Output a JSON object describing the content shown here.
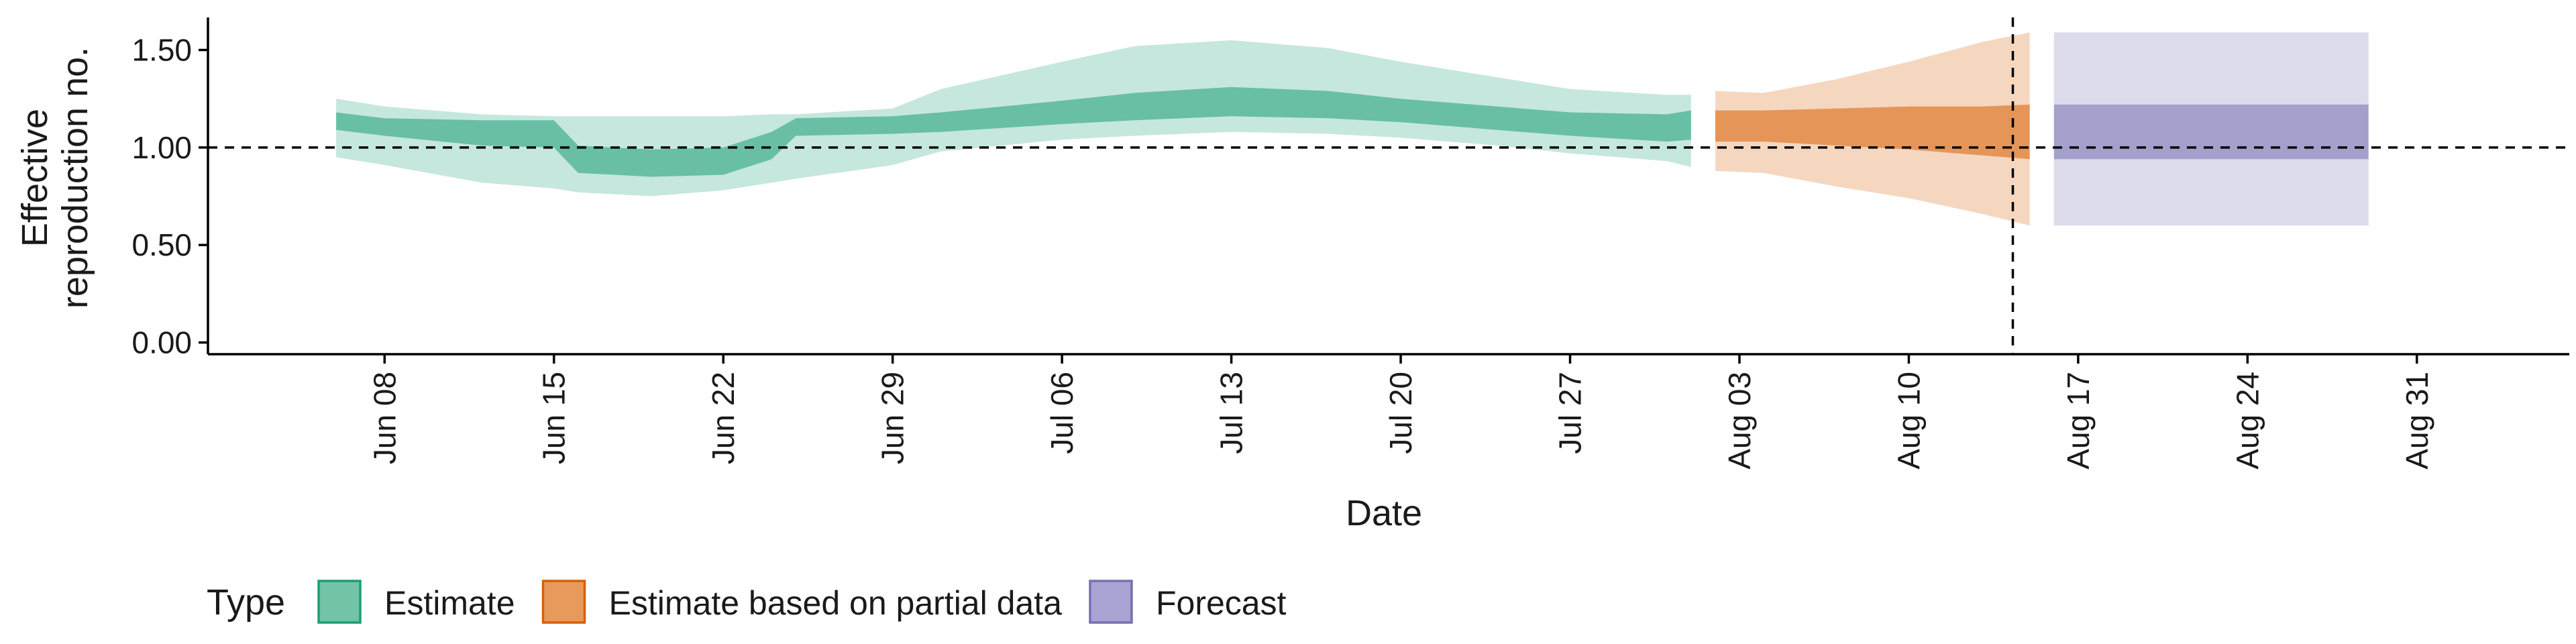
{
  "chart_data": {
    "type": "area",
    "ylabel_lines": [
      "Effective",
      "reproduction no."
    ],
    "xlabel": "Date",
    "ylim": [
      -0.06,
      1.66
    ],
    "xlim_days": [
      -5.3,
      92.3
    ],
    "start_date": "2020-06-06",
    "yticks": [
      0.0,
      0.5,
      1.0,
      1.5
    ],
    "ytick_labels": [
      "0.00",
      "0.50",
      "1.00",
      "1.50"
    ],
    "xticks": [
      "Jun 08",
      "Jun 15",
      "Jun 22",
      "Jun 29",
      "Jul 06",
      "Jul 13",
      "Jul 20",
      "Jul 27",
      "Aug 03",
      "Aug 10",
      "Aug 17",
      "Aug 24",
      "Aug 31"
    ],
    "xtick_days": [
      2,
      9,
      16,
      23,
      30,
      37,
      44,
      51,
      58,
      65,
      72,
      79,
      86
    ],
    "reference_hline_y": 1.0,
    "reference_vline_day": 69.3,
    "grid": false,
    "legend": {
      "position": "bottom-left",
      "title": "Type",
      "entries": [
        {
          "label": "Estimate",
          "fill": "#73c3a6",
          "stroke": "#1b9e77"
        },
        {
          "label": "Estimate based on partial data",
          "fill": "#e89a5c",
          "stroke": "#d95f02"
        },
        {
          "label": "Forecast",
          "fill": "#a7a3d3",
          "stroke": "#7570b3"
        }
      ]
    },
    "series": [
      {
        "name": "Estimate",
        "color": "#1b9e77",
        "points": [
          {
            "date": "2020-06-06",
            "lower90": 0.95,
            "upper90": 1.25,
            "lower50": 1.09,
            "upper50": 1.18
          },
          {
            "date": "2020-06-08",
            "lower90": 0.91,
            "upper90": 1.21,
            "lower50": 1.06,
            "upper50": 1.15
          },
          {
            "date": "2020-06-12",
            "lower90": 0.82,
            "upper90": 1.17,
            "lower50": 1.01,
            "upper50": 1.14
          },
          {
            "date": "2020-06-15",
            "lower90": 0.79,
            "upper90": 1.16,
            "lower50": 1.0,
            "upper50": 1.14
          },
          {
            "date": "2020-06-16",
            "lower90": 0.77,
            "upper90": 1.16,
            "lower50": 0.87,
            "upper50": 1.01
          },
          {
            "date": "2020-06-19",
            "lower90": 0.75,
            "upper90": 1.16,
            "lower50": 0.85,
            "upper50": 0.99
          },
          {
            "date": "2020-06-22",
            "lower90": 0.78,
            "upper90": 1.16,
            "lower50": 0.86,
            "upper50": 1.0
          },
          {
            "date": "2020-06-24",
            "lower90": 0.82,
            "upper90": 1.17,
            "lower50": 0.94,
            "upper50": 1.08
          },
          {
            "date": "2020-06-25",
            "lower90": 0.84,
            "upper90": 1.17,
            "lower50": 1.06,
            "upper50": 1.15
          },
          {
            "date": "2020-06-29",
            "lower90": 0.91,
            "upper90": 1.2,
            "lower50": 1.07,
            "upper50": 1.16
          },
          {
            "date": "2020-07-01",
            "lower90": 0.98,
            "upper90": 1.3,
            "lower50": 1.08,
            "upper50": 1.18
          },
          {
            "date": "2020-07-06",
            "lower90": 1.04,
            "upper90": 1.44,
            "lower50": 1.12,
            "upper50": 1.24
          },
          {
            "date": "2020-07-09",
            "lower90": 1.06,
            "upper90": 1.52,
            "lower50": 1.14,
            "upper50": 1.28
          },
          {
            "date": "2020-07-13",
            "lower90": 1.08,
            "upper90": 1.55,
            "lower50": 1.16,
            "upper50": 1.31
          },
          {
            "date": "2020-07-17",
            "lower90": 1.07,
            "upper90": 1.51,
            "lower50": 1.15,
            "upper50": 1.29
          },
          {
            "date": "2020-07-20",
            "lower90": 1.05,
            "upper90": 1.44,
            "lower50": 1.13,
            "upper50": 1.25
          },
          {
            "date": "2020-07-24",
            "lower90": 1.01,
            "upper90": 1.36,
            "lower50": 1.09,
            "upper50": 1.21
          },
          {
            "date": "2020-07-27",
            "lower90": 0.97,
            "upper90": 1.3,
            "lower50": 1.06,
            "upper50": 1.18
          },
          {
            "date": "2020-07-31",
            "lower90": 0.93,
            "upper90": 1.27,
            "lower50": 1.03,
            "upper50": 1.17
          },
          {
            "date": "2020-08-01",
            "lower90": 0.9,
            "upper90": 1.27,
            "lower50": 1.04,
            "upper50": 1.19
          }
        ]
      },
      {
        "name": "Estimate based on partial data",
        "color": "#d95f02",
        "points": [
          {
            "date": "2020-08-02",
            "lower90": 0.88,
            "upper90": 1.29,
            "lower50": 1.03,
            "upper50": 1.19
          },
          {
            "date": "2020-08-04",
            "lower90": 0.87,
            "upper90": 1.28,
            "lower50": 1.03,
            "upper50": 1.19
          },
          {
            "date": "2020-08-07",
            "lower90": 0.8,
            "upper90": 1.35,
            "lower50": 1.01,
            "upper50": 1.2
          },
          {
            "date": "2020-08-10",
            "lower90": 0.74,
            "upper90": 1.44,
            "lower50": 0.99,
            "upper50": 1.21
          },
          {
            "date": "2020-08-13",
            "lower90": 0.66,
            "upper90": 1.54,
            "lower50": 0.96,
            "upper50": 1.21
          },
          {
            "date": "2020-08-15",
            "lower90": 0.6,
            "upper90": 1.59,
            "lower50": 0.94,
            "upper50": 1.22
          }
        ]
      },
      {
        "name": "Forecast",
        "color": "#7570b3",
        "points": [
          {
            "date": "2020-08-16",
            "lower90": 0.6,
            "upper90": 1.59,
            "lower50": 0.94,
            "upper50": 1.22
          },
          {
            "date": "2020-08-29",
            "lower90": 0.6,
            "upper90": 1.59,
            "lower50": 0.94,
            "upper50": 1.22
          }
        ]
      }
    ]
  }
}
